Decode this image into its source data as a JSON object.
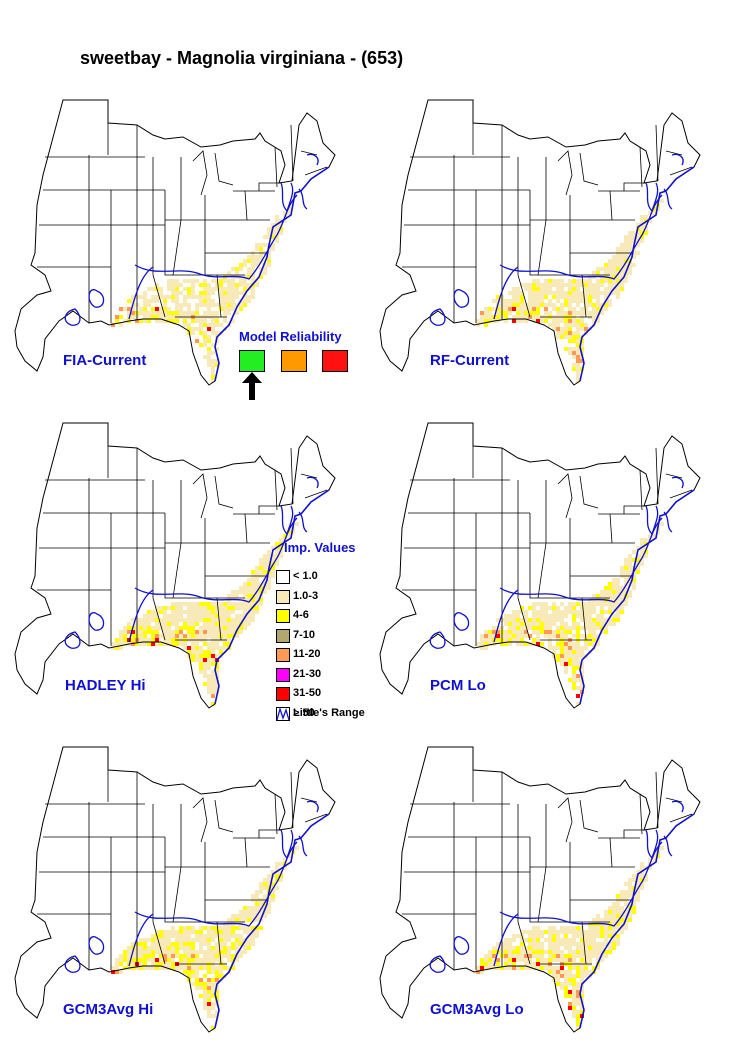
{
  "title": "sweetbay - Magnolia virginiana - (653)",
  "maps": [
    {
      "label": "FIA-Current",
      "intensity": 0.55
    },
    {
      "label": "RF-Current",
      "intensity": 0.8
    },
    {
      "label": "HADLEY Hi",
      "intensity": 1.0
    },
    {
      "label": "PCM Lo",
      "intensity": 0.85
    },
    {
      "label": "GCM3Avg Hi",
      "intensity": 0.95
    },
    {
      "label": "GCM3Avg Lo",
      "intensity": 0.9
    }
  ],
  "model_reliability": {
    "title": "Model Reliability",
    "levels": [
      {
        "color": "#22ee22",
        "selected": true
      },
      {
        "color": "#ff9900"
      },
      {
        "color": "#ff1111"
      }
    ]
  },
  "importance_legend": {
    "title": "Imp. Values",
    "items": [
      {
        "label": "< 1.0",
        "color": "#ffffff"
      },
      {
        "label": "1.0-3",
        "color": "#f8eab8"
      },
      {
        "label": "4-6",
        "color": "#ffff00"
      },
      {
        "label": "7-10",
        "color": "#b3a66e"
      },
      {
        "label": "11-20",
        "color": "#ff9955"
      },
      {
        "label": "21-30",
        "color": "#ff00ff"
      },
      {
        "label": "31-50",
        "color": "#ff0000"
      },
      {
        "label": "> 50",
        "color": "#a0205a"
      }
    ],
    "range_label": "Little's Range",
    "range_color": "#1010d0"
  }
}
